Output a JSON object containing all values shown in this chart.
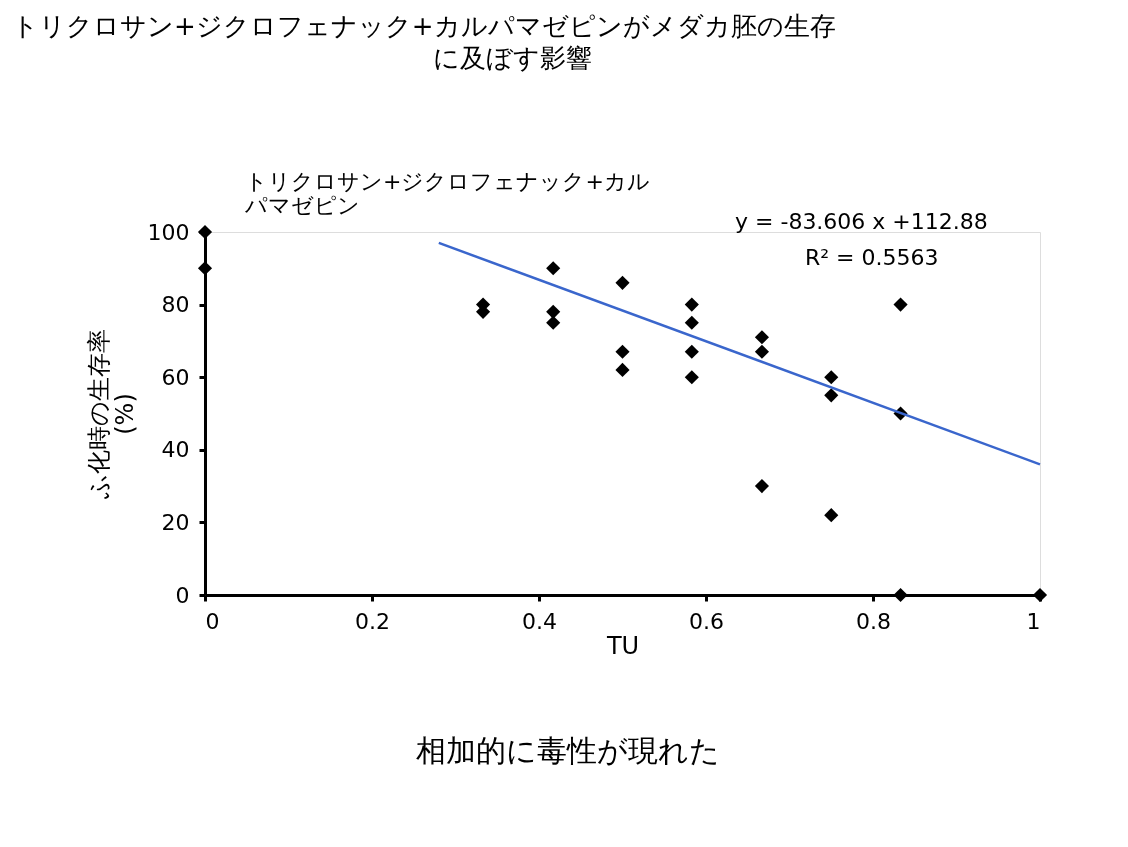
{
  "chart_data": {
    "type": "scatter",
    "title": "トリクロサン+ジクロフェナック+カルパマゼピンがメダカ胚の生存に及ぼす影響",
    "xlabel": "TU",
    "ylabel": "ふ化時の生存率\n(%)",
    "xlim": [
      0,
      1
    ],
    "ylim": [
      0,
      100
    ],
    "xticks": [
      0,
      0.2,
      0.4,
      0.6,
      0.8,
      1
    ],
    "yticks": [
      0,
      20,
      40,
      60,
      80,
      100
    ],
    "grid": false,
    "series": [
      {
        "name": "トリクロサン+ジクロフェナック+カルパマゼピン",
        "marker": "diamond",
        "color": "#000000",
        "x": [
          0,
          0,
          0.333,
          0.333,
          0.417,
          0.417,
          0.417,
          0.5,
          0.5,
          0.5,
          0.583,
          0.583,
          0.583,
          0.583,
          0.667,
          0.667,
          0.667,
          0.75,
          0.75,
          0.75,
          0.833,
          0.833,
          0.833,
          1
        ],
        "values": [
          100,
          90,
          80,
          78,
          90,
          78,
          75,
          86,
          67,
          62,
          80,
          75,
          67,
          60,
          71,
          67,
          30,
          60,
          55,
          22,
          80,
          50,
          0,
          0
        ]
      },
      {
        "type": "line",
        "color": "#3a66cc",
        "x": [
          0.28,
          1
        ],
        "values": [
          97,
          36
        ]
      }
    ],
    "annotations": [
      "y = -83.606 x +112.88",
      "R² = 0.5563",
      "相加的に毒性が現れた"
    ]
  }
}
